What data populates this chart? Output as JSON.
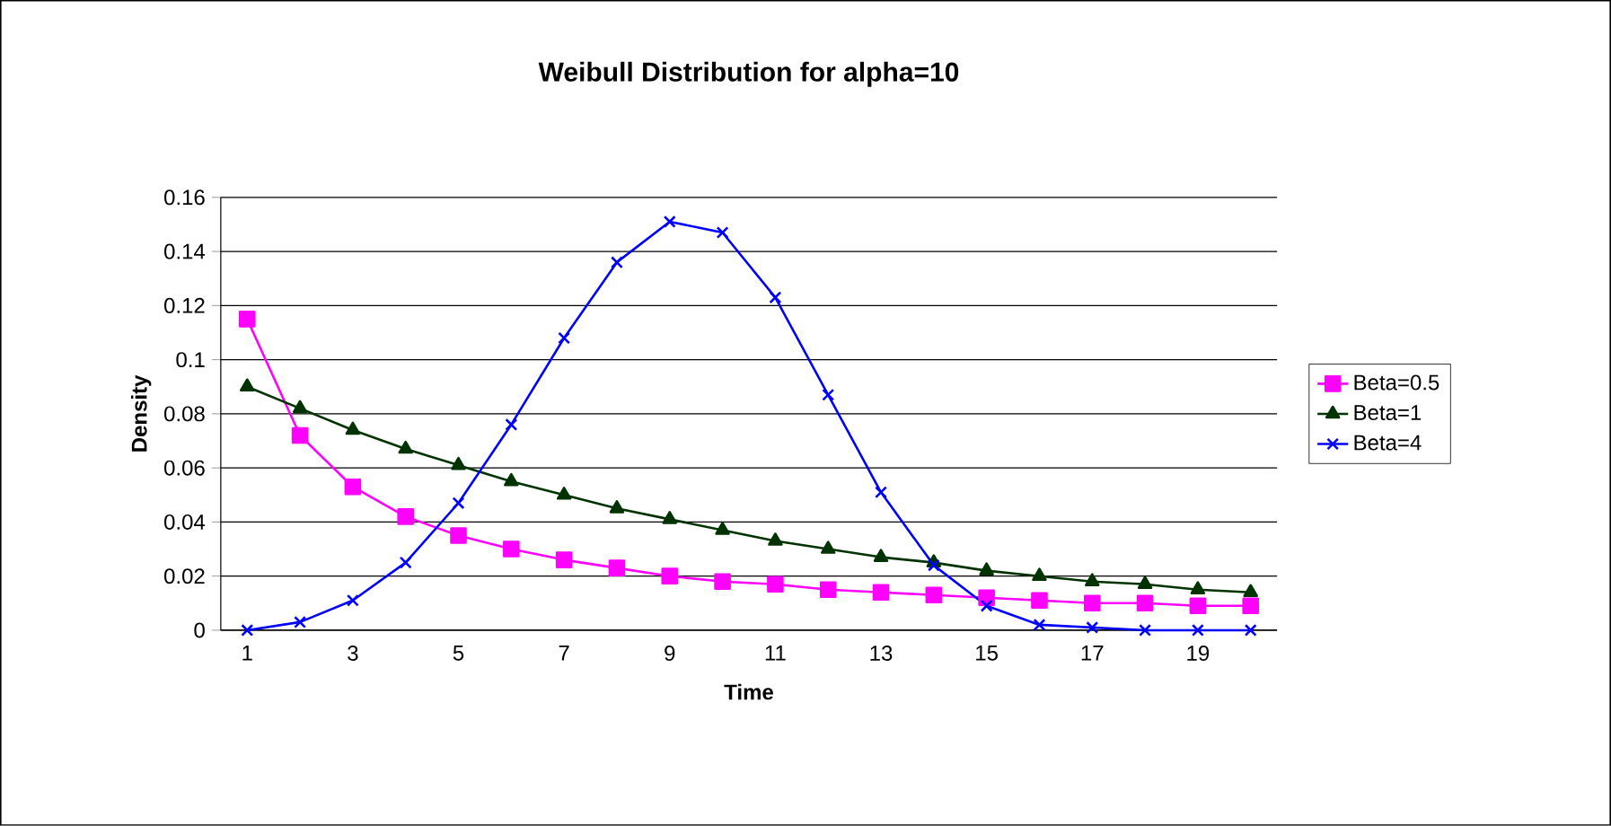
{
  "chart_data": {
    "type": "line",
    "title": "Weibull Distribution for alpha=10",
    "xlabel": "Time",
    "ylabel": "Density",
    "categories": [
      "1",
      null,
      "3",
      null,
      "5",
      null,
      "7",
      null,
      "9",
      null,
      "11",
      null,
      "13",
      null,
      "15",
      null,
      "17",
      null,
      "19",
      null
    ],
    "ylim": [
      0,
      0.16
    ],
    "yticks": [
      0,
      0.02,
      0.04,
      0.06,
      0.08,
      0.1,
      0.12,
      0.14,
      0.16
    ],
    "grid": "y",
    "legend": "right",
    "series": [
      {
        "name": "Beta=0.5",
        "color": "#ff00ff",
        "marker": "square",
        "values": [
          0.115,
          0.072,
          0.053,
          0.042,
          0.035,
          0.03,
          0.026,
          0.023,
          0.02,
          0.018,
          0.017,
          0.015,
          0.014,
          0.013,
          0.012,
          0.011,
          0.01,
          0.01,
          0.009,
          0.009
        ]
      },
      {
        "name": "Beta=1",
        "color": "#003300",
        "marker": "triangle",
        "values": [
          0.09,
          0.082,
          0.074,
          0.067,
          0.061,
          0.055,
          0.05,
          0.045,
          0.041,
          0.037,
          0.033,
          0.03,
          0.027,
          0.025,
          0.022,
          0.02,
          0.018,
          0.017,
          0.015,
          0.014
        ]
      },
      {
        "name": "Beta=4",
        "color": "#0000ff",
        "marker": "cross",
        "values": [
          0.0,
          0.003,
          0.011,
          0.025,
          0.047,
          0.076,
          0.108,
          0.136,
          0.151,
          0.147,
          0.123,
          0.087,
          0.051,
          0.024,
          0.009,
          0.002,
          0.001,
          0.0,
          0.0,
          0.0
        ]
      }
    ]
  }
}
